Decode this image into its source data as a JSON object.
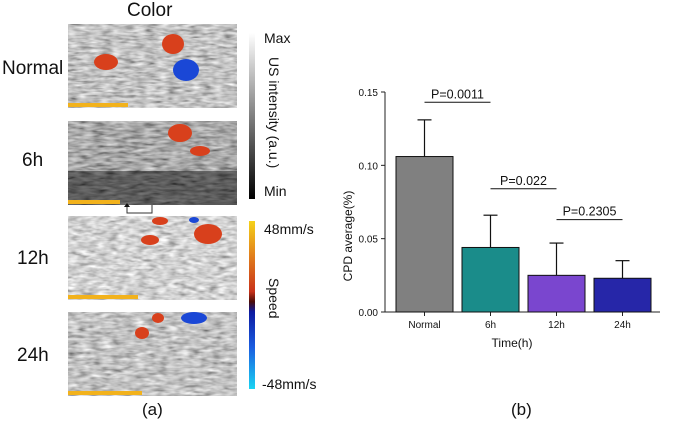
{
  "panel_a": {
    "column_title": "Color",
    "row_labels": [
      "Normal",
      "6h",
      "12h",
      "24h"
    ],
    "intensity_bar": {
      "max_label": "Max",
      "min_label": "Min",
      "axis_label": "US intensity (a.u.)"
    },
    "speed_bar": {
      "top_label": "48mm/s",
      "bottom_label": "-48mm/s",
      "axis_label": "Speed"
    },
    "caption": "(a)"
  },
  "panel_b": {
    "caption": "(b)"
  },
  "colors": {
    "normal": "#808080",
    "h6": "#1a8c8a",
    "h12": "#7a46cf",
    "h24": "#2626a8",
    "doppler_red": "#d8401c",
    "doppler_blue": "#1a47d6",
    "scale_bar": "#f2b21c"
  },
  "chart_data": {
    "type": "bar",
    "categories": [
      "Normal",
      "6h",
      "12h",
      "24h"
    ],
    "values": [
      0.106,
      0.044,
      0.025,
      0.023
    ],
    "errors": [
      0.025,
      0.022,
      0.022,
      0.012
    ],
    "ylim": [
      0,
      0.15
    ],
    "yticks": [
      0.0,
      0.05,
      0.1,
      0.15
    ],
    "ytick_labels": [
      "0.00",
      "0.05",
      "0.10",
      "0.15"
    ],
    "xlabel": "Time(h)",
    "ylabel": "CPD average(%)",
    "annotations": [
      {
        "text": "P=0.0011",
        "from": 0,
        "to": 1,
        "level": 0.143
      },
      {
        "text": "P=0.022",
        "from": 1,
        "to": 2,
        "level": 0.084
      },
      {
        "text": "P=0.2305",
        "from": 2,
        "to": 3,
        "level": 0.063
      }
    ]
  }
}
